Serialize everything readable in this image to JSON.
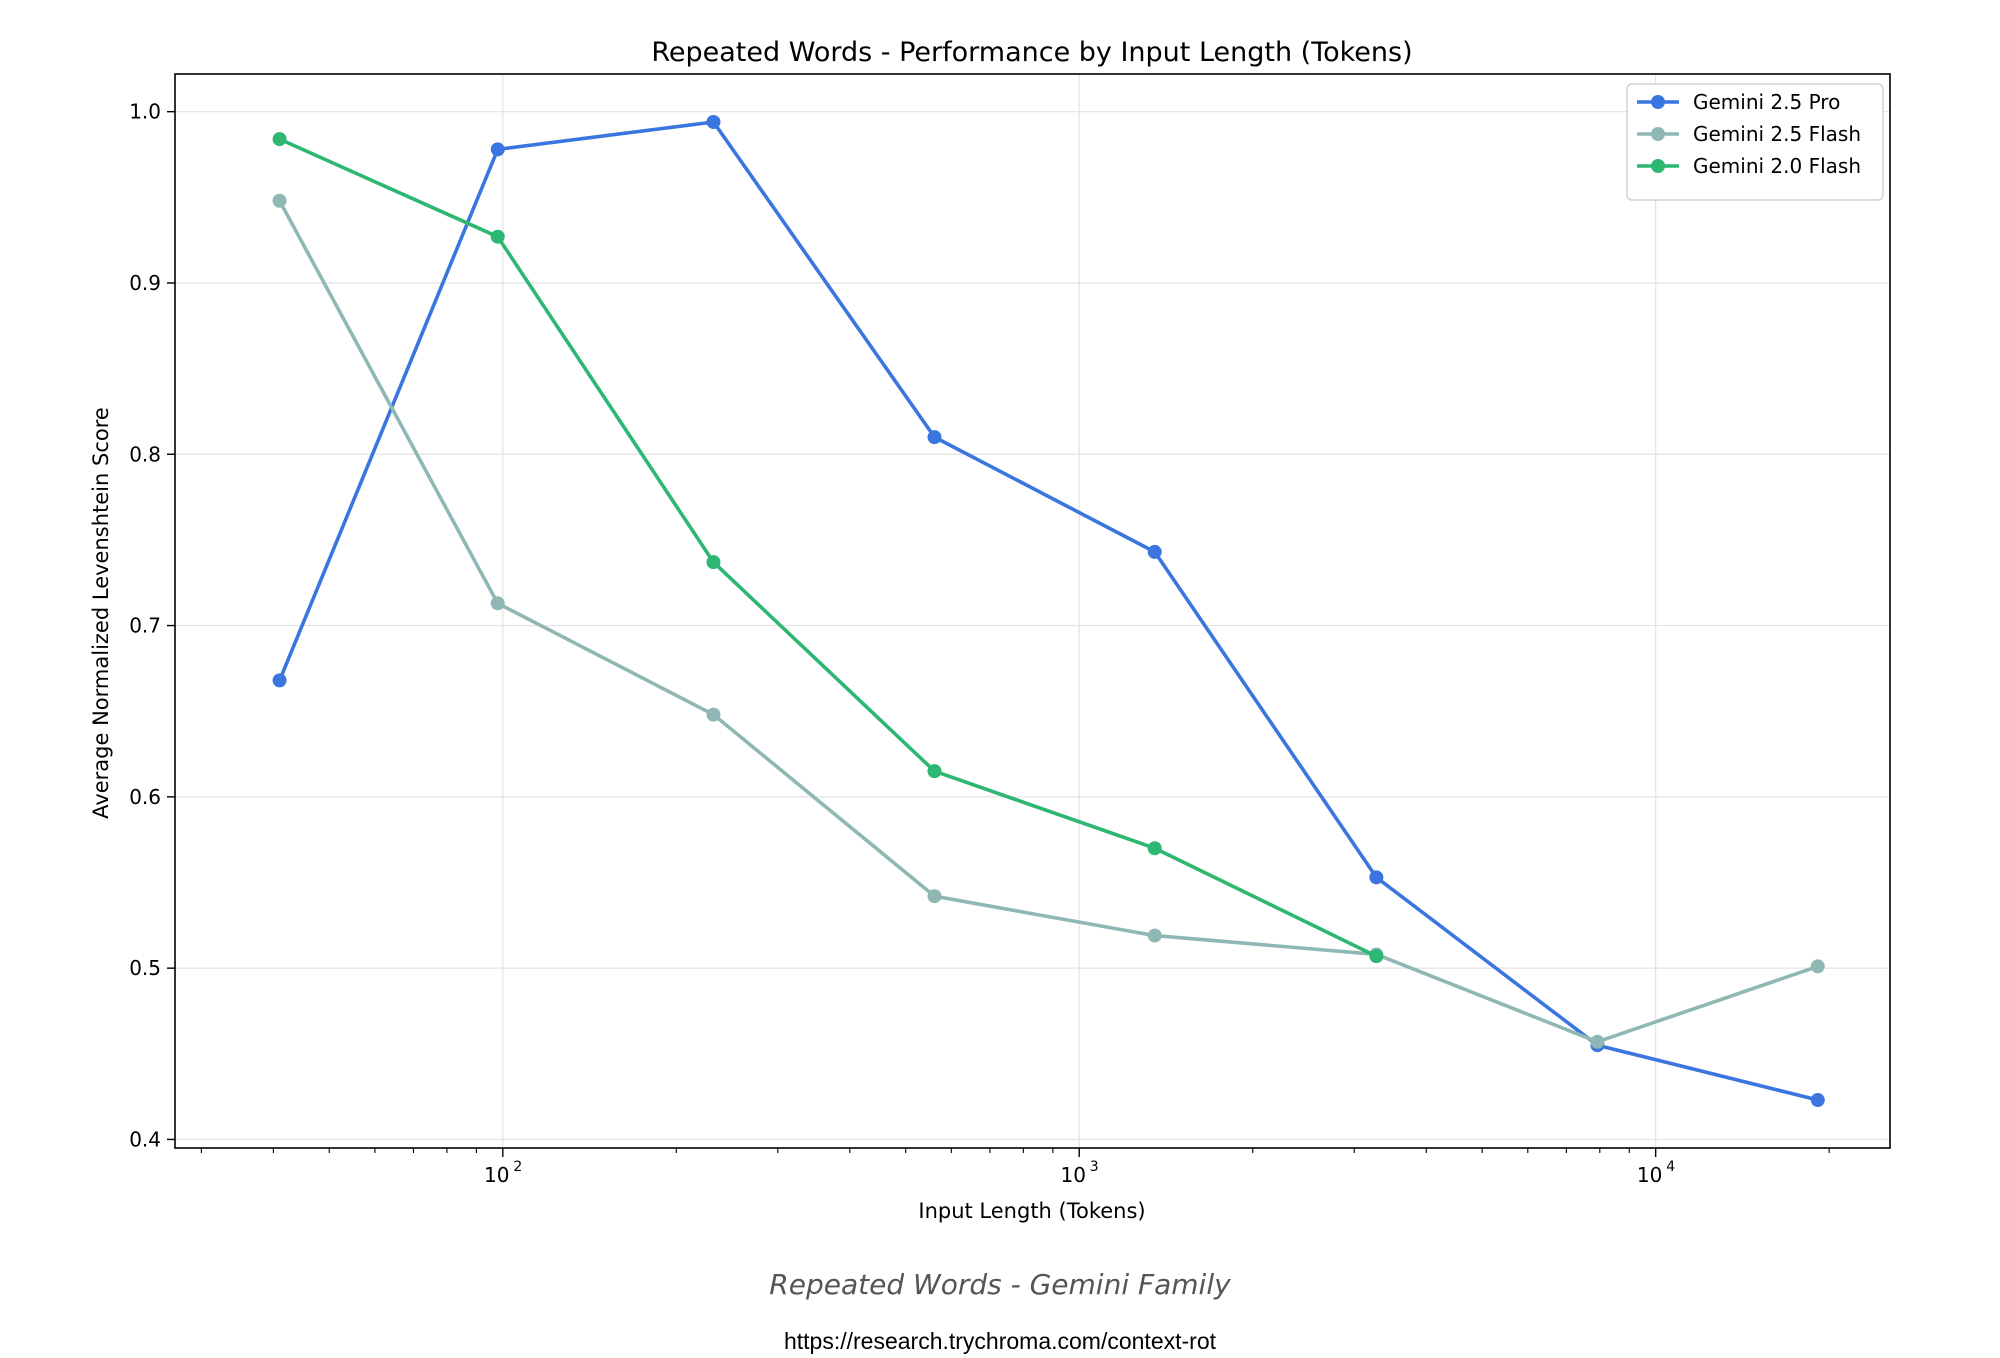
{
  "chart_data": {
    "type": "line",
    "title": "Repeated Words - Performance by Input Length (Tokens)",
    "xlabel": "Input Length (Tokens)",
    "ylabel": "Average Normalized Levenshtein Score",
    "x_scale": "log",
    "xlim": [
      27,
      25500
    ],
    "ylim": [
      0.395,
      1.022
    ],
    "x_ticks": [
      {
        "value": 100,
        "label": "10",
        "exp": "2"
      },
      {
        "value": 1000,
        "label": "10",
        "exp": "3"
      },
      {
        "value": 10000,
        "label": "10",
        "exp": "4"
      }
    ],
    "y_ticks": [
      0.4,
      0.5,
      0.6,
      0.7,
      0.8,
      0.9,
      1.0
    ],
    "y_tick_labels": [
      "0.4",
      "0.5",
      "0.6",
      "0.7",
      "0.8",
      "0.9",
      "1.0"
    ],
    "grid": true,
    "legend_position": "top-right",
    "series": [
      {
        "name": "Gemini 2.5 Pro",
        "color": "#3b75e0",
        "x": [
          41,
          98,
          232,
          561,
          1352,
          3277,
          7925,
          19110
        ],
        "y": [
          0.668,
          0.978,
          0.994,
          0.81,
          0.743,
          0.553,
          0.455,
          0.423
        ]
      },
      {
        "name": "Gemini 2.5 Flash",
        "color": "#8fb8b4",
        "x": [
          41,
          98,
          232,
          561,
          1352,
          3277,
          7925,
          19110
        ],
        "y": [
          0.948,
          0.713,
          0.648,
          0.542,
          0.519,
          0.508,
          0.457,
          0.501
        ]
      },
      {
        "name": "Gemini 2.0 Flash",
        "color": "#2db773",
        "x": [
          41,
          98,
          232,
          561,
          1352,
          3277
        ],
        "y": [
          0.984,
          0.927,
          0.737,
          0.615,
          0.57,
          0.507
        ]
      }
    ]
  },
  "caption": "Repeated Words - Gemini Family",
  "source_url": "https://research.trychroma.com/context-rot"
}
